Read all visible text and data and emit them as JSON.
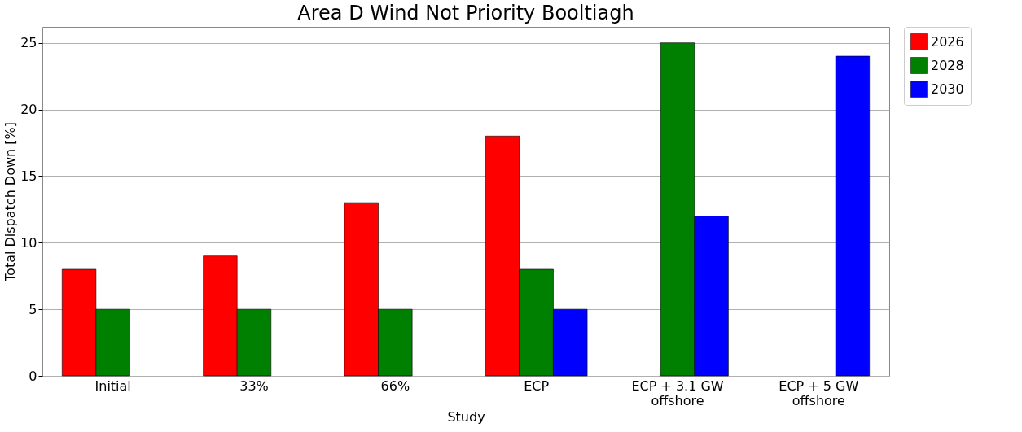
{
  "chart_data": {
    "type": "bar",
    "title": "Area D Wind Not Priority Booltiagh",
    "xlabel": "Study",
    "ylabel": "Total Dispatch Down [%]",
    "categories": [
      "Initial",
      "33%",
      "66%",
      "ECP",
      "ECP + 3.1 GW offshore",
      "ECP + 5 GW offshore"
    ],
    "series": [
      {
        "name": "2026",
        "color": "#ff0000",
        "values": [
          8,
          9,
          13,
          18,
          null,
          null
        ]
      },
      {
        "name": "2028",
        "color": "#008000",
        "values": [
          5,
          5,
          5,
          8,
          25,
          null
        ]
      },
      {
        "name": "2030",
        "color": "#0000ff",
        "values": [
          null,
          null,
          null,
          5,
          12,
          24
        ]
      }
    ],
    "ylim": [
      0,
      26.2
    ],
    "yticks": [
      0,
      5,
      10,
      15,
      20,
      25
    ],
    "grid": "y",
    "legend": "right"
  }
}
